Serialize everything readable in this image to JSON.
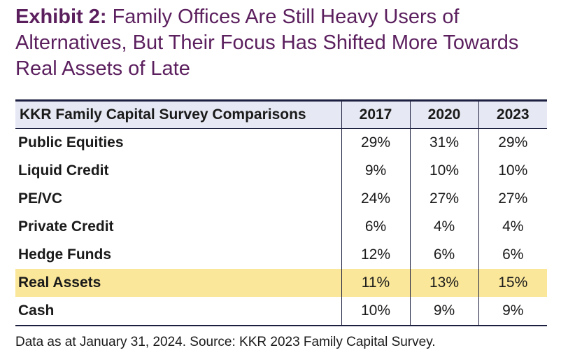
{
  "title_bold": "Exhibit 2:",
  "title_rest": " Family Offices Are Still Heavy Users of Alternatives, But Their Focus Has Shifted More Towards Real Assets of Late",
  "source": "Data as at January 31, 2024. Source: KKR 2023 Family Capital Survey.",
  "highlight_color": "#fbe79a",
  "header_color": "#e6e8f3",
  "chart_data": {
    "type": "table",
    "header_label": "KKR Family Capital Survey Comparisons",
    "columns": [
      "2017",
      "2020",
      "2023"
    ],
    "rows": [
      {
        "label": "Public Equities",
        "values": [
          "29%",
          "31%",
          "29%"
        ],
        "highlight": false
      },
      {
        "label": "Liquid Credit",
        "values": [
          "9%",
          "10%",
          "10%"
        ],
        "highlight": false
      },
      {
        "label": "PE/VC",
        "values": [
          "24%",
          "27%",
          "27%"
        ],
        "highlight": false
      },
      {
        "label": "Private Credit",
        "values": [
          "6%",
          "4%",
          "4%"
        ],
        "highlight": false
      },
      {
        "label": "Hedge Funds",
        "values": [
          "12%",
          "6%",
          "6%"
        ],
        "highlight": false
      },
      {
        "label": "Real Assets",
        "values": [
          "11%",
          "13%",
          "15%"
        ],
        "highlight": true
      },
      {
        "label": "Cash",
        "values": [
          "10%",
          "9%",
          "9%"
        ],
        "highlight": false
      }
    ]
  }
}
